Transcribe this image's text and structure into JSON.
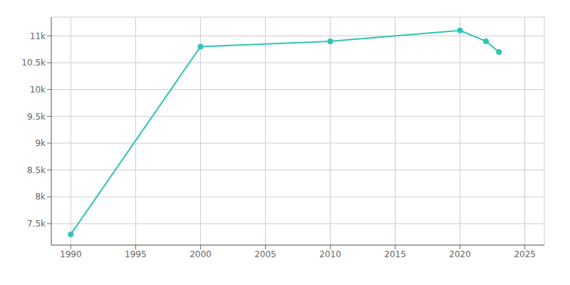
{
  "chart_data": {
    "type": "line",
    "x": [
      1990,
      2000,
      2010,
      2020,
      2022,
      2023
    ],
    "values": [
      7300,
      10800,
      10900,
      11100,
      10900,
      10700
    ],
    "color": "#2EC4B6",
    "marker": "o",
    "xlim": [
      1988.5,
      2026.5
    ],
    "ylim": [
      7100,
      11350
    ],
    "xticks": [
      1990,
      1995,
      2000,
      2005,
      2010,
      2015,
      2020,
      2025
    ],
    "yticks": [
      {
        "value": 7500,
        "label": "7.5k"
      },
      {
        "value": 8000,
        "label": "8k"
      },
      {
        "value": 8500,
        "label": "8.5k"
      },
      {
        "value": 9000,
        "label": "9k"
      },
      {
        "value": 9500,
        "label": "9.5k"
      },
      {
        "value": 10000,
        "label": "10k"
      },
      {
        "value": 10500,
        "label": "10.5k"
      },
      {
        "value": 11000,
        "label": "11k"
      }
    ],
    "grid": true
  }
}
